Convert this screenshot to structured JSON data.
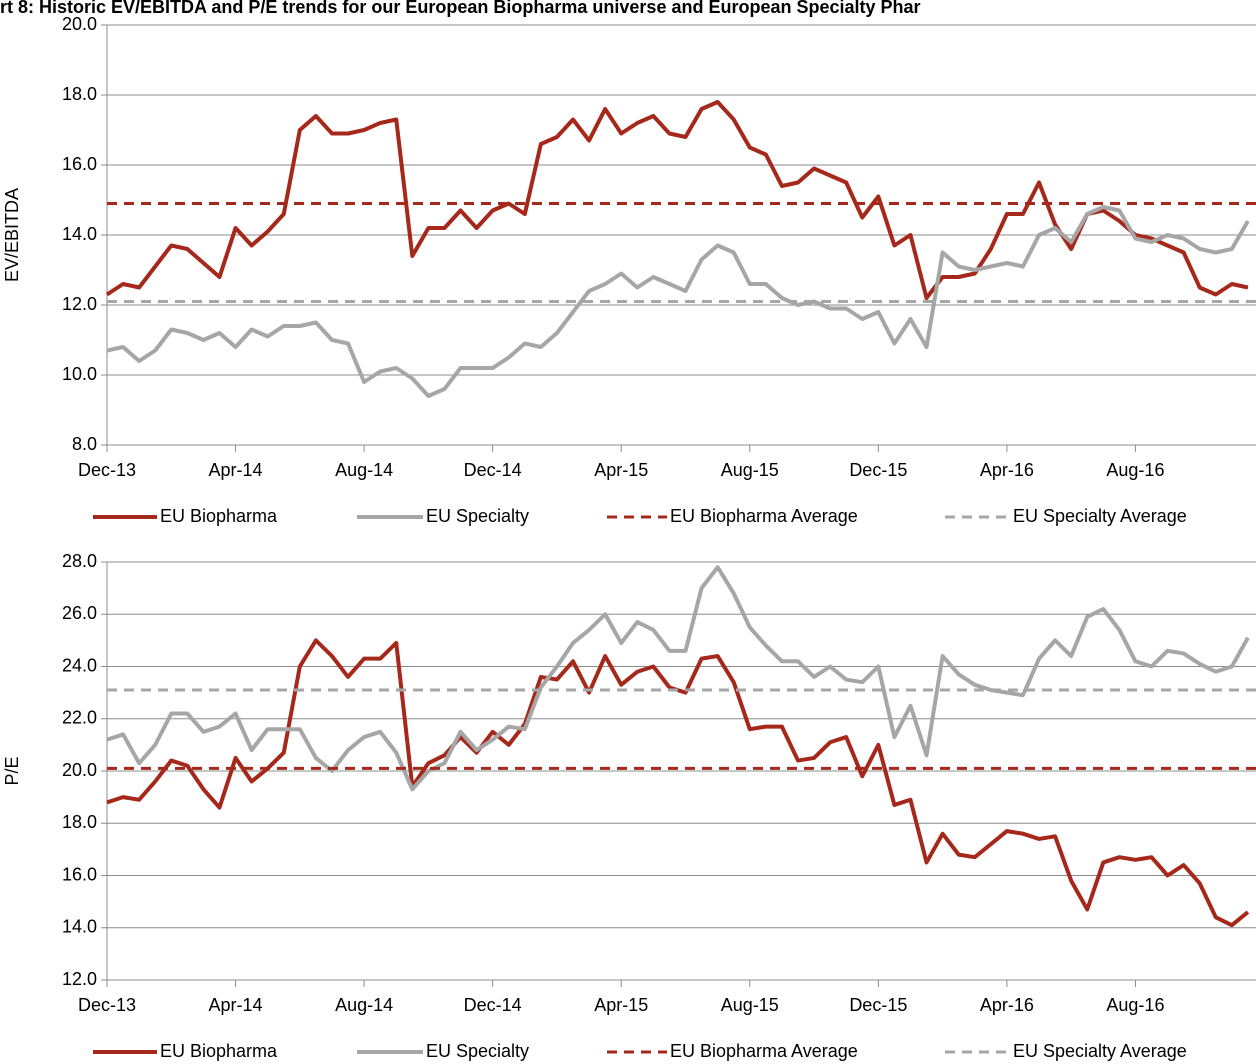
{
  "title": "rt 8: Historic EV/EBITDA and P/E trends for our European Biopharma universe and European Specialty Phar",
  "chart_data": [
    {
      "type": "line",
      "ylabel": "EV/EBITDA",
      "categories": [
        "Dec-13",
        null,
        null,
        null,
        null,
        null,
        null,
        null,
        "Apr-14",
        null,
        null,
        null,
        null,
        null,
        null,
        null,
        "Aug-14",
        null,
        null,
        null,
        null,
        null,
        null,
        null,
        "Dec-14",
        null,
        null,
        null,
        null,
        null,
        null,
        null,
        "Apr-15",
        null,
        null,
        null,
        null,
        null,
        null,
        null,
        "Aug-15",
        null,
        null,
        null,
        null,
        null,
        null,
        null,
        "Dec-15",
        null,
        null,
        null,
        null,
        null,
        null,
        null,
        "Apr-16",
        null,
        null,
        null,
        null,
        null,
        null,
        null,
        "Aug-16",
        null,
        null,
        null,
        null,
        null,
        null,
        null
      ],
      "series": [
        {
          "name": "EU Biopharma",
          "color": "#a5281b",
          "values": [
            12.3,
            12.6,
            12.5,
            13.1,
            13.7,
            13.6,
            13.2,
            12.8,
            14.2,
            13.7,
            14.1,
            14.6,
            17.0,
            17.4,
            16.9,
            16.9,
            17.0,
            17.2,
            17.3,
            13.4,
            14.2,
            14.2,
            14.7,
            14.2,
            14.7,
            14.9,
            14.6,
            16.6,
            16.8,
            17.3,
            16.7,
            17.6,
            16.9,
            17.2,
            17.4,
            16.9,
            16.8,
            17.6,
            17.8,
            17.3,
            16.5,
            16.3,
            15.4,
            15.5,
            15.9,
            15.7,
            15.5,
            14.5,
            15.1,
            13.7,
            14.0,
            12.2,
            12.8,
            12.8,
            12.9,
            13.6,
            14.6,
            14.6,
            15.5,
            14.3,
            13.6,
            14.6,
            14.7,
            14.4,
            14.0,
            13.9,
            13.7,
            13.5,
            12.5,
            12.3,
            12.6,
            12.5
          ]
        },
        {
          "name": "EU Specialty",
          "color": "#a6a6a6",
          "values": [
            10.7,
            10.8,
            10.4,
            10.7,
            11.3,
            11.2,
            11.0,
            11.2,
            10.8,
            11.3,
            11.1,
            11.4,
            11.4,
            11.5,
            11.0,
            10.9,
            9.8,
            10.1,
            10.2,
            9.9,
            9.4,
            9.6,
            10.2,
            10.2,
            10.2,
            10.5,
            10.9,
            10.8,
            11.2,
            11.8,
            12.4,
            12.6,
            12.9,
            12.5,
            12.8,
            12.6,
            12.4,
            13.3,
            13.7,
            13.5,
            12.6,
            12.6,
            12.2,
            12.0,
            12.1,
            11.9,
            11.9,
            11.6,
            11.8,
            10.9,
            11.6,
            10.8,
            13.5,
            13.1,
            13.0,
            13.1,
            13.2,
            13.1,
            14.0,
            14.2,
            13.8,
            14.6,
            14.8,
            14.7,
            13.9,
            13.8,
            14.0,
            13.9,
            13.6,
            13.5,
            13.6,
            14.4
          ]
        },
        {
          "name": "EU Biopharma Average",
          "color": "#a5281b",
          "dashed": true,
          "value": 14.9
        },
        {
          "name": "EU Specialty Average",
          "color": "#a6a6a6",
          "dashed": true,
          "value": 12.1
        }
      ],
      "ylim": [
        8,
        20
      ],
      "yticks": [
        {
          "value": 8,
          "label": "8.0"
        },
        {
          "value": 10,
          "label": "10.0"
        },
        {
          "value": 12,
          "label": "12.0"
        },
        {
          "value": 14,
          "label": "14.0"
        },
        {
          "value": 16,
          "label": "16.0"
        },
        {
          "value": 18,
          "label": "18.0"
        },
        {
          "value": 20,
          "label": "20.0"
        }
      ],
      "grid": true,
      "legend": "bottom"
    },
    {
      "type": "line",
      "ylabel": "P/E",
      "categories": [
        "Dec-13",
        null,
        null,
        null,
        null,
        null,
        null,
        null,
        "Apr-14",
        null,
        null,
        null,
        null,
        null,
        null,
        null,
        "Aug-14",
        null,
        null,
        null,
        null,
        null,
        null,
        null,
        "Dec-14",
        null,
        null,
        null,
        null,
        null,
        null,
        null,
        "Apr-15",
        null,
        null,
        null,
        null,
        null,
        null,
        null,
        "Aug-15",
        null,
        null,
        null,
        null,
        null,
        null,
        null,
        "Dec-15",
        null,
        null,
        null,
        null,
        null,
        null,
        null,
        "Apr-16",
        null,
        null,
        null,
        null,
        null,
        null,
        null,
        "Aug-16",
        null,
        null,
        null,
        null,
        null,
        null,
        null
      ],
      "series": [
        {
          "name": "EU Biopharma",
          "color": "#a5281b",
          "values": [
            18.8,
            19.0,
            18.9,
            19.6,
            20.4,
            20.2,
            19.3,
            18.6,
            20.5,
            19.6,
            20.1,
            20.7,
            24.0,
            25.0,
            24.4,
            23.6,
            24.3,
            24.3,
            24.9,
            19.4,
            20.3,
            20.6,
            21.3,
            20.7,
            21.5,
            21.0,
            21.8,
            23.6,
            23.5,
            24.2,
            23.0,
            24.4,
            23.3,
            23.8,
            24.0,
            23.2,
            23.0,
            24.3,
            24.4,
            23.4,
            21.6,
            21.7,
            21.7,
            20.4,
            20.5,
            21.1,
            21.3,
            19.8,
            21.0,
            18.7,
            18.9,
            16.5,
            17.6,
            16.8,
            16.7,
            17.2,
            17.7,
            17.6,
            17.4,
            17.5,
            15.8,
            14.7,
            16.5,
            16.7,
            16.6,
            16.7,
            16.0,
            16.4,
            15.7,
            14.4,
            14.1,
            14.6
          ]
        },
        {
          "name": "EU Specialty",
          "color": "#a6a6a6",
          "values": [
            21.2,
            21.4,
            20.3,
            21.0,
            22.2,
            22.2,
            21.5,
            21.7,
            22.2,
            20.8,
            21.6,
            21.6,
            21.6,
            20.5,
            20.0,
            20.8,
            21.3,
            21.5,
            20.7,
            19.3,
            20.0,
            20.3,
            21.5,
            20.8,
            21.2,
            21.7,
            21.6,
            23.2,
            24.0,
            24.9,
            25.4,
            26.0,
            24.9,
            25.7,
            25.4,
            24.6,
            24.6,
            27.0,
            27.8,
            26.8,
            25.5,
            24.8,
            24.2,
            24.2,
            23.6,
            24.0,
            23.5,
            23.4,
            24.0,
            21.3,
            22.5,
            20.6,
            24.4,
            23.7,
            23.3,
            23.1,
            23.0,
            22.9,
            24.3,
            25.0,
            24.4,
            25.9,
            26.2,
            25.4,
            24.2,
            24.0,
            24.6,
            24.5,
            24.1,
            23.8,
            24.0,
            25.1
          ]
        },
        {
          "name": "EU Biopharma Average",
          "color": "#a5281b",
          "dashed": true,
          "value": 20.1
        },
        {
          "name": "EU Specialty Average",
          "color": "#a6a6a6",
          "dashed": true,
          "value": 23.1
        }
      ],
      "ylim": [
        12,
        28
      ],
      "yticks": [
        {
          "value": 12,
          "label": "12.0"
        },
        {
          "value": 14,
          "label": "14.0"
        },
        {
          "value": 16,
          "label": "16.0"
        },
        {
          "value": 18,
          "label": "18.0"
        },
        {
          "value": 20,
          "label": "20.0"
        },
        {
          "value": 22,
          "label": "22.0"
        },
        {
          "value": 24,
          "label": "24.0"
        },
        {
          "value": 26,
          "label": "26.0"
        },
        {
          "value": 28,
          "label": "28.0"
        }
      ],
      "grid": true,
      "legend": "bottom"
    }
  ]
}
